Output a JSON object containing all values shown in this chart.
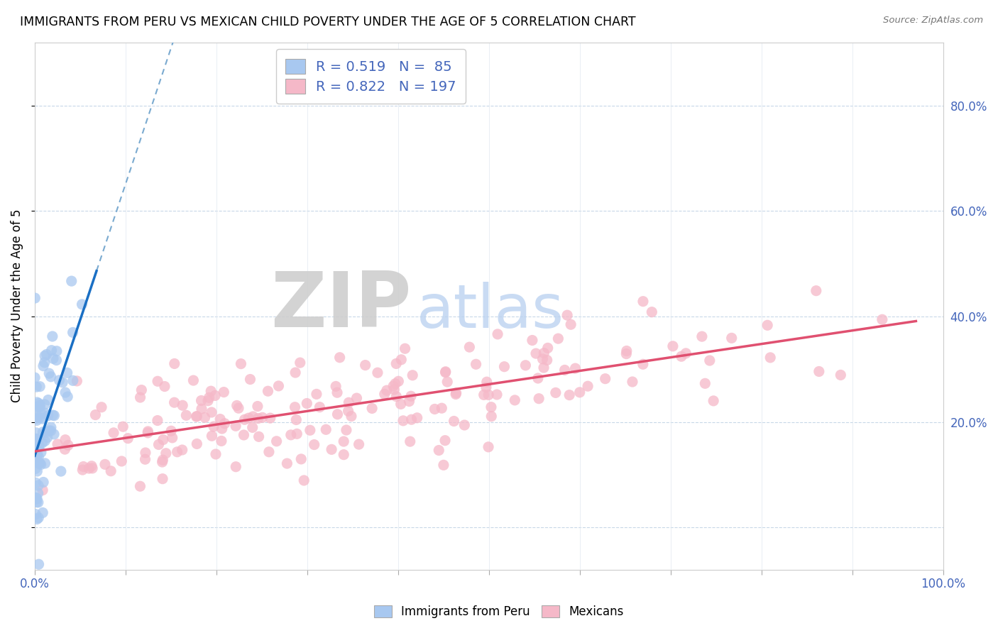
{
  "title": "IMMIGRANTS FROM PERU VS MEXICAN CHILD POVERTY UNDER THE AGE OF 5 CORRELATION CHART",
  "source": "Source: ZipAtlas.com",
  "ylabel": "Child Poverty Under the Age of 5",
  "xlim": [
    0,
    1.0
  ],
  "ylim": [
    -0.08,
    0.92
  ],
  "xticks": [
    0.0,
    0.1,
    0.2,
    0.3,
    0.4,
    0.5,
    0.6,
    0.7,
    0.8,
    0.9,
    1.0
  ],
  "ytick_positions": [
    0.0,
    0.2,
    0.4,
    0.6,
    0.8
  ],
  "yticklabels": [
    "",
    "20.0%",
    "40.0%",
    "60.0%",
    "80.0%"
  ],
  "blue_color": "#a8c8f0",
  "pink_color": "#f5b8c8",
  "blue_line_color": "#1a6fc4",
  "pink_line_color": "#e05070",
  "blue_dash_color": "#7aaad0",
  "legend_blue_label": "Immigrants from Peru",
  "legend_pink_label": "Mexicans",
  "R_blue": 0.519,
  "N_blue": 85,
  "R_pink": 0.822,
  "N_pink": 197,
  "seed": 42,
  "watermark_ZIP_color": "#cccccc",
  "watermark_atlas_color": "#b8d0f0",
  "grid_color": "#c8d8e8",
  "tick_label_color": "#4466bb"
}
